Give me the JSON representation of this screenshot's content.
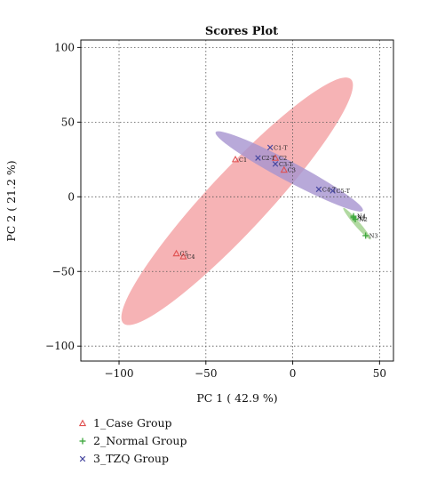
{
  "chart_data": {
    "type": "scatter",
    "title": "Scores Plot",
    "xlabel": "PC 1 ( 42.9 %)",
    "ylabel": "PC 2 ( 21.2 %)",
    "xlim": [
      -122,
      58
    ],
    "ylim": [
      -110,
      105
    ],
    "xticks": [
      -100,
      -50,
      0,
      50
    ],
    "yticks": [
      -100,
      -50,
      0,
      50,
      100
    ],
    "grid": true,
    "legend_position": "bottom-left",
    "series": [
      {
        "name": "1_Case Group",
        "marker": "triangle",
        "color": "#e05050",
        "points": [
          {
            "label": "C1",
            "x": -33,
            "y": 25
          },
          {
            "label": "C2",
            "x": -10,
            "y": 26
          },
          {
            "label": "C3",
            "x": -5,
            "y": 18
          },
          {
            "label": "C4",
            "x": -63,
            "y": -40
          },
          {
            "label": "C5",
            "x": -67,
            "y": -38
          }
        ],
        "ellipse": {
          "cx": -32,
          "cy": -3,
          "rx": 96,
          "ry": 20,
          "angle": 47,
          "fill": "#f4a0a2"
        }
      },
      {
        "name": "2_Normal Group",
        "marker": "plus",
        "color": "#3aa63a",
        "points": [
          {
            "label": "N1",
            "x": 35,
            "y": -14
          },
          {
            "label": "N2",
            "x": 36,
            "y": -15
          },
          {
            "label": "N3",
            "x": 42,
            "y": -26
          },
          {
            "label": "N4",
            "x": 35,
            "y": -13
          }
        ],
        "ellipse": {
          "cx": 37,
          "cy": -18,
          "rx": 12,
          "ry": 1.8,
          "angle": -49,
          "fill": "#9ed08a"
        }
      },
      {
        "name": "3_TZQ Group",
        "marker": "x",
        "color": "#4848a0",
        "points": [
          {
            "label": "C1-T",
            "x": -13,
            "y": 33
          },
          {
            "label": "C2-T",
            "x": -20,
            "y": 26
          },
          {
            "label": "C3-T",
            "x": -10,
            "y": 22
          },
          {
            "label": "C4-T",
            "x": 15,
            "y": 5
          },
          {
            "label": "C5-T",
            "x": 23,
            "y": 4
          }
        ],
        "ellipse": {
          "cx": -2,
          "cy": 17,
          "rx": 48,
          "ry": 6.5,
          "angle": -28,
          "fill": "#a694cf"
        }
      }
    ]
  }
}
